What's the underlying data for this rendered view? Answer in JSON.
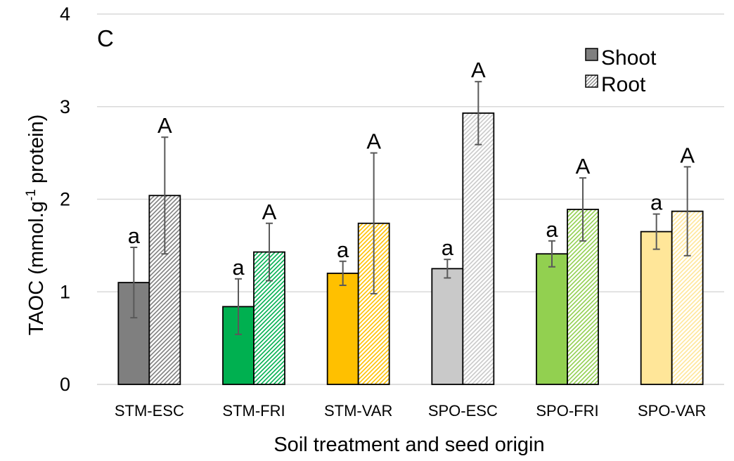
{
  "chart_data": {
    "type": "bar",
    "panel_label": "C",
    "xlabel": "Soil treatment and seed origin",
    "ylabel": "TAOC (mmol.g",
    "ylabel_sup": "-1",
    "ylabel_rest": " protein)",
    "ylim": [
      0,
      4
    ],
    "yticks": [
      "0",
      "1",
      "2",
      "3",
      "4"
    ],
    "grid": true,
    "legend_position": "top-right",
    "categories": [
      "STM-ESC",
      "STM-FRI",
      "STM-VAR",
      "SPO-ESC",
      "SPO-FRI",
      "SPO-VAR"
    ],
    "category_colors": [
      "#7f7f7f",
      "#00b050",
      "#ffc000",
      "#c9c9c9",
      "#92d050",
      "#ffe699"
    ],
    "series": [
      {
        "name": "Shoot",
        "pattern": "solid",
        "values": [
          1.1,
          0.84,
          1.2,
          1.25,
          1.41,
          1.65
        ],
        "errors": [
          0.38,
          0.3,
          0.13,
          0.1,
          0.14,
          0.19
        ],
        "letters": [
          "a",
          "a",
          "a",
          "a",
          "a",
          "a"
        ]
      },
      {
        "name": "Root",
        "pattern": "hatched",
        "values": [
          2.04,
          1.43,
          1.74,
          2.93,
          1.89,
          1.87
        ],
        "errors": [
          0.63,
          0.31,
          0.76,
          0.34,
          0.34,
          0.48
        ],
        "letters": [
          "A",
          "A",
          "A",
          "A",
          "A",
          "A"
        ]
      }
    ]
  }
}
